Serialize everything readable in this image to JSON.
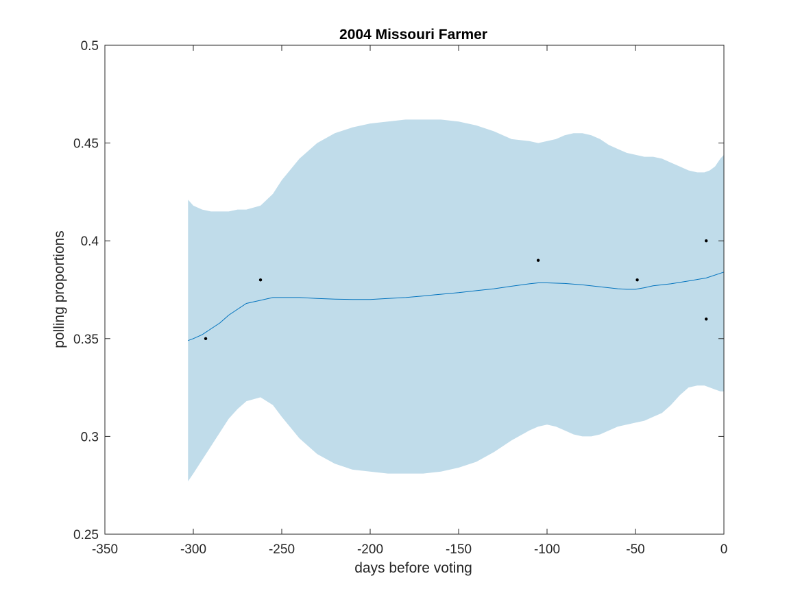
{
  "chart_data": {
    "type": "line",
    "title": "2004 Missouri Farmer",
    "xlabel": "days before voting",
    "ylabel": "polling proportions",
    "xlim": [
      -350,
      0
    ],
    "ylim": [
      0.25,
      0.5
    ],
    "xticks": [
      -350,
      -300,
      -250,
      -200,
      -150,
      -100,
      -50,
      0
    ],
    "xtick_labels": [
      "-350",
      "-300",
      "-250",
      "-200",
      "-150",
      "-100",
      "-50",
      "0"
    ],
    "yticks": [
      0.25,
      0.3,
      0.35,
      0.4,
      0.45,
      0.5
    ],
    "ytick_labels": [
      "0.25",
      "0.3",
      "0.35",
      "0.4",
      "0.45",
      "0.5"
    ],
    "grid": false,
    "legend": "none",
    "colors": {
      "band": "#c0dcea",
      "line": "#0072bd",
      "points": "#000000",
      "axis": "#262626"
    },
    "series": [
      {
        "type": "band",
        "x": [
          -303,
          -300,
          -295,
          -290,
          -285,
          -280,
          -275,
          -270,
          -262,
          -255,
          -250,
          -240,
          -230,
          -220,
          -210,
          -200,
          -190,
          -180,
          -170,
          -160,
          -150,
          -140,
          -130,
          -120,
          -110,
          -105,
          -100,
          -95,
          -90,
          -85,
          -80,
          -75,
          -70,
          -65,
          -60,
          -55,
          -50,
          -45,
          -40,
          -35,
          -30,
          -25,
          -20,
          -15,
          -11,
          -8,
          -5,
          -2,
          0
        ],
        "upper": [
          0.421,
          0.418,
          0.416,
          0.415,
          0.415,
          0.415,
          0.416,
          0.416,
          0.418,
          0.424,
          0.431,
          0.442,
          0.45,
          0.455,
          0.458,
          0.46,
          0.461,
          0.462,
          0.462,
          0.462,
          0.461,
          0.459,
          0.456,
          0.452,
          0.451,
          0.45,
          0.451,
          0.452,
          0.454,
          0.455,
          0.455,
          0.454,
          0.452,
          0.449,
          0.447,
          0.445,
          0.444,
          0.443,
          0.443,
          0.442,
          0.44,
          0.438,
          0.436,
          0.435,
          0.435,
          0.436,
          0.438,
          0.442,
          0.444
        ],
        "lower": [
          0.277,
          0.281,
          0.288,
          0.295,
          0.302,
          0.309,
          0.314,
          0.318,
          0.32,
          0.316,
          0.31,
          0.299,
          0.291,
          0.286,
          0.283,
          0.282,
          0.281,
          0.281,
          0.281,
          0.282,
          0.284,
          0.287,
          0.292,
          0.298,
          0.303,
          0.305,
          0.306,
          0.305,
          0.303,
          0.301,
          0.3,
          0.3,
          0.301,
          0.303,
          0.305,
          0.306,
          0.307,
          0.308,
          0.31,
          0.312,
          0.316,
          0.321,
          0.325,
          0.326,
          0.326,
          0.325,
          0.324,
          0.323,
          0.323
        ]
      },
      {
        "type": "line",
        "x": [
          -303,
          -300,
          -295,
          -290,
          -285,
          -280,
          -275,
          -270,
          -265,
          -260,
          -255,
          -250,
          -240,
          -230,
          -220,
          -210,
          -200,
          -190,
          -180,
          -170,
          -160,
          -150,
          -140,
          -130,
          -120,
          -110,
          -105,
          -100,
          -90,
          -80,
          -70,
          -60,
          -55,
          -50,
          -45,
          -40,
          -30,
          -20,
          -10,
          0
        ],
        "y": [
          0.349,
          0.35,
          0.352,
          0.355,
          0.358,
          0.362,
          0.365,
          0.368,
          0.369,
          0.37,
          0.371,
          0.371,
          0.371,
          0.3705,
          0.3702,
          0.37,
          0.37,
          0.3705,
          0.371,
          0.3718,
          0.3727,
          0.3735,
          0.3745,
          0.3755,
          0.3768,
          0.378,
          0.3785,
          0.3785,
          0.3782,
          0.3775,
          0.3765,
          0.3755,
          0.3752,
          0.3752,
          0.376,
          0.377,
          0.378,
          0.3795,
          0.381,
          0.384
        ]
      },
      {
        "type": "scatter",
        "x": [
          -293,
          -262,
          -105,
          -49,
          -10,
          -10
        ],
        "y": [
          0.35,
          0.38,
          0.39,
          0.38,
          0.4,
          0.36
        ]
      }
    ]
  }
}
